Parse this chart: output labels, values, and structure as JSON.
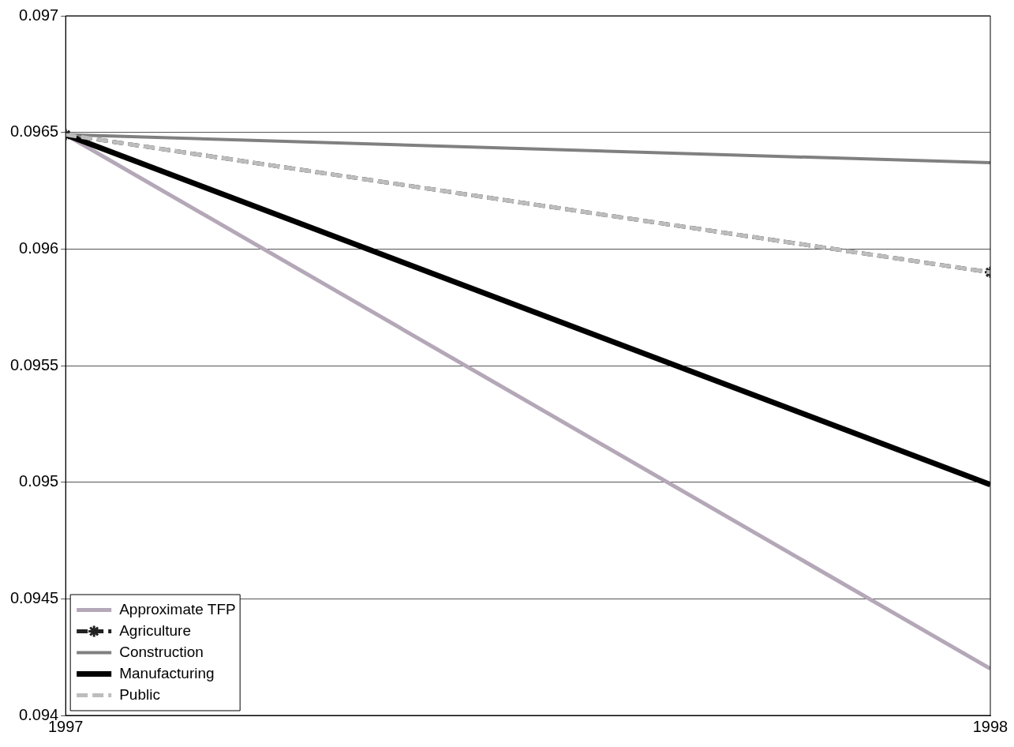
{
  "chart_data": {
    "type": "line",
    "x": [
      1997,
      1998
    ],
    "xlim": [
      1997,
      1998
    ],
    "xticks": [
      1997,
      1998
    ],
    "ylim": [
      0.094,
      0.097
    ],
    "yticks": [
      0.094,
      0.0945,
      0.095,
      0.0955,
      0.096,
      0.0965,
      0.097
    ],
    "grid": "y",
    "legend": "bottom left",
    "line_style": "solid",
    "marker": "none",
    "series": [
      {
        "name": "Approximate TFP",
        "color": "#b4a8b8",
        "values": [
          0.09649,
          0.0942
        ]
      },
      {
        "name": "Agriculture",
        "color": "#222222",
        "values": [
          0.09649,
          0.0959
        ],
        "line_style": "dashed",
        "marker": "cross"
      },
      {
        "name": "Construction",
        "color": "#808080",
        "values": [
          0.09649,
          0.09637
        ]
      },
      {
        "name": "Manufacturing",
        "color": "#000000",
        "values": [
          0.09649,
          0.09499
        ]
      },
      {
        "name": "Public",
        "color": "#bdbdbd",
        "values": [
          0.09649,
          0.0959
        ],
        "line_style": "dashed"
      }
    ]
  }
}
